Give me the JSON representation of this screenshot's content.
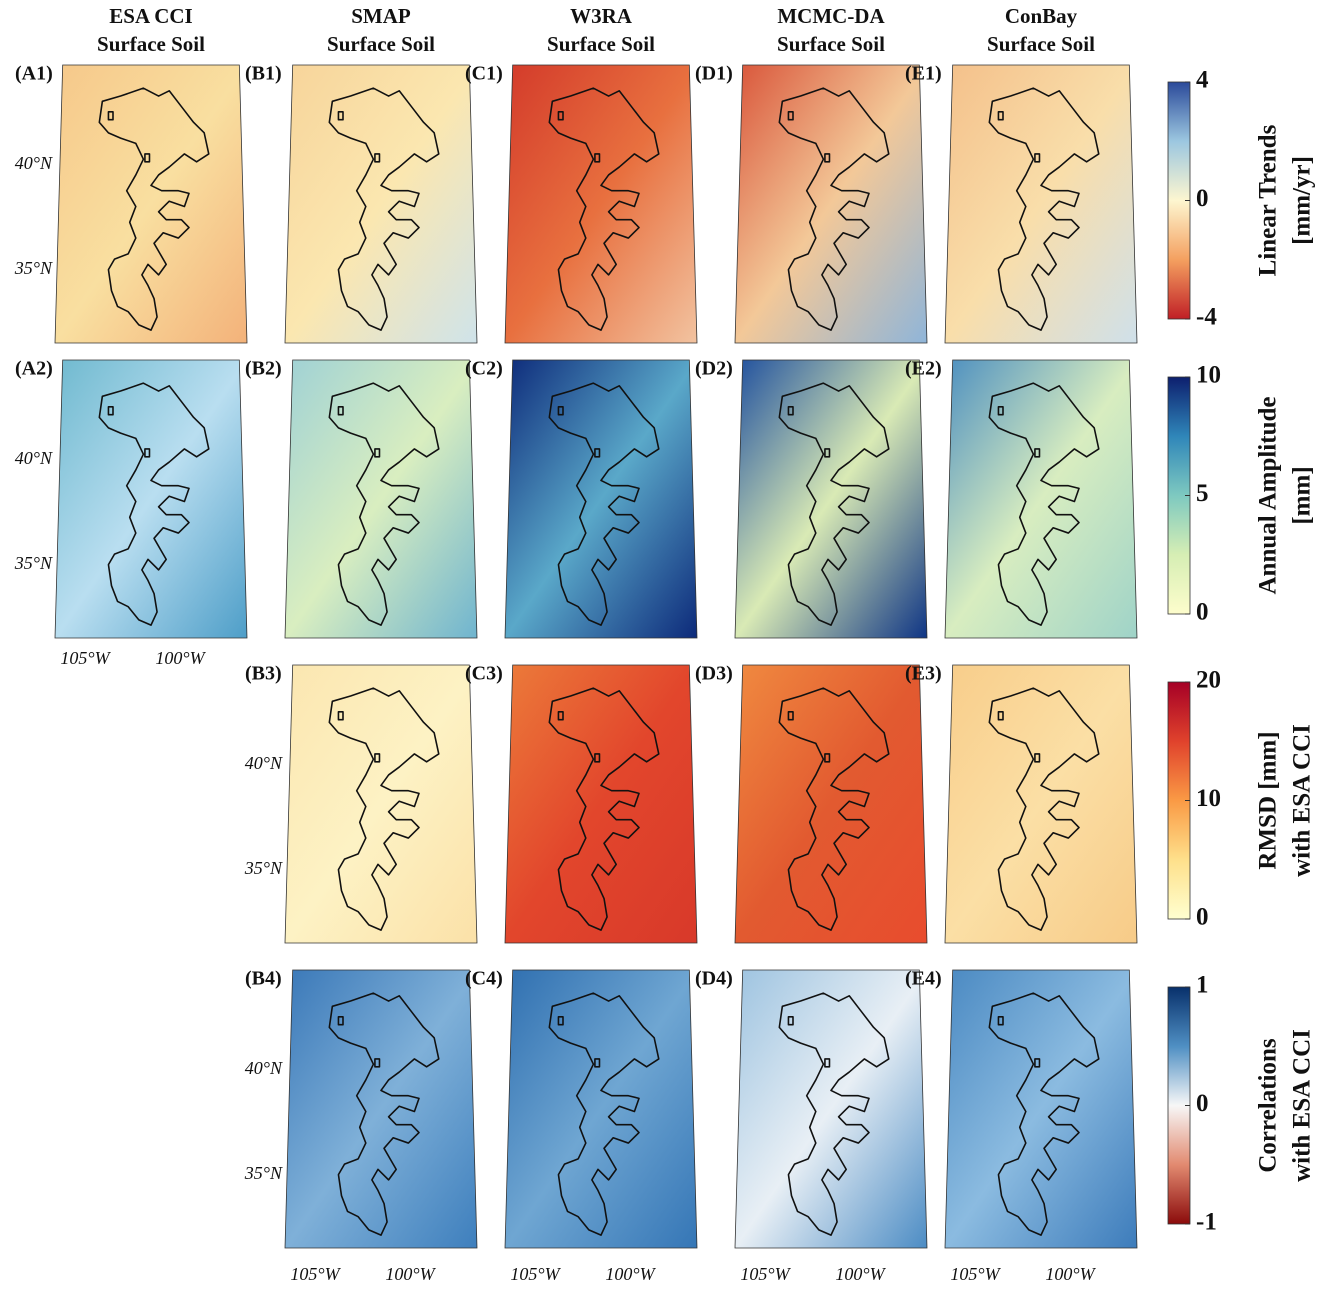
{
  "columns": [
    {
      "title": "ESA CCI",
      "subtitle": "Surface Soil"
    },
    {
      "title": "SMAP",
      "subtitle": "Surface Soil"
    },
    {
      "title": "W3RA",
      "subtitle": "Surface Soil"
    },
    {
      "title": "MCMC-DA",
      "subtitle": "Surface Soil"
    },
    {
      "title": "ConBay",
      "subtitle": "Surface Soil"
    }
  ],
  "rows": [
    {
      "panels": [
        "(A1)",
        "(B1)",
        "(C1)",
        "(D1)",
        "(E1)"
      ],
      "latitude_labels": [
        "40°N",
        "35°N"
      ],
      "colorbar": {
        "title": "Linear Trends",
        "subtitle": "[mm/yr]",
        "ticks": [
          4,
          0,
          -4
        ]
      }
    },
    {
      "panels": [
        "(A2)",
        "(B2)",
        "(C2)",
        "(D2)",
        "(E2)"
      ],
      "latitude_labels": [
        "40°N",
        "35°N"
      ],
      "longitude_labels": [
        "105°W",
        "100°W"
      ],
      "colorbar": {
        "title": "Annual Amplitude",
        "subtitle": "[mm]",
        "ticks": [
          10,
          5,
          0
        ]
      }
    },
    {
      "panels": [
        "(B3)",
        "(C3)",
        "(D3)",
        "(E3)"
      ],
      "latitude_labels": [
        "40°N",
        "35°N"
      ],
      "colorbar": {
        "title": "RMSD [mm]",
        "subtitle": "with ESA CCI",
        "ticks": [
          20,
          10,
          0
        ]
      }
    },
    {
      "panels": [
        "(B4)",
        "(C4)",
        "(D4)",
        "(E4)"
      ],
      "latitude_labels": [
        "40°N",
        "35°N"
      ],
      "colorbar": {
        "title": "Correlations",
        "subtitle": "with ESA CCI",
        "ticks": [
          1,
          0,
          -1
        ]
      }
    }
  ],
  "bottom_longitude_labels": [
    [
      "105°W",
      "100°W"
    ],
    [
      "105°W",
      "100°W"
    ],
    [
      "105°W",
      "100°W"
    ],
    [
      "105°W",
      "100°W"
    ]
  ]
}
